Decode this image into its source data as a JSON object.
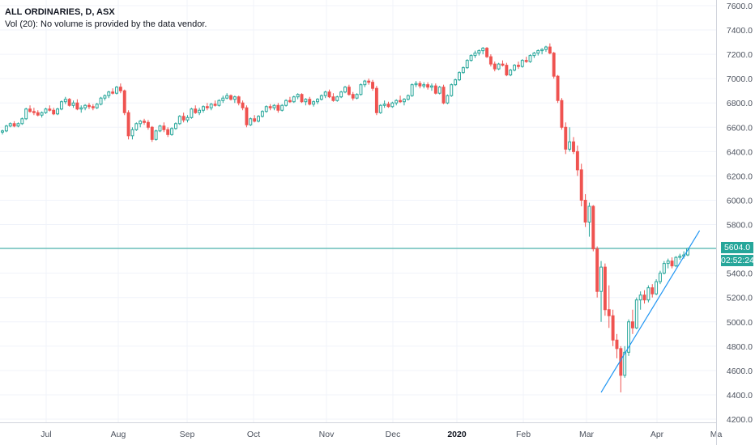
{
  "header": {
    "title": "ALL ORDINARIES, D, ASX",
    "volume_note": "Vol (20): No volume is provided by the data vendor."
  },
  "colors": {
    "up": "#26a69a",
    "down": "#ef5350",
    "price_line": "#26a69a",
    "trendline": "#2196f3",
    "grid": "#f0f3fa",
    "axis_text": "#4c525e"
  },
  "price_badge": {
    "value": "5604.0",
    "countdown": "02:52:24"
  },
  "chart_data": {
    "type": "candlestick",
    "title": "ALL ORDINARIES, D, ASX",
    "y_ticks": [
      "7600.0",
      "7400.0",
      "7200.0",
      "7000.0",
      "6800.0",
      "6600.0",
      "6400.0",
      "6200.0",
      "6000.0",
      "5800.0",
      "5600.0",
      "5400.0",
      "5200.0",
      "5000.0",
      "4800.0",
      "4600.0",
      "4400.0",
      "4200.0"
    ],
    "ylim": [
      4150,
      7650
    ],
    "x_ticks": [
      {
        "label": "Jul",
        "bold": false
      },
      {
        "label": "Aug",
        "bold": false
      },
      {
        "label": "Sep",
        "bold": false
      },
      {
        "label": "Oct",
        "bold": false
      },
      {
        "label": "Nov",
        "bold": false
      },
      {
        "label": "Dec",
        "bold": false
      },
      {
        "label": "2020",
        "bold": true
      },
      {
        "label": "Feb",
        "bold": false
      },
      {
        "label": "Mar",
        "bold": false
      },
      {
        "label": "Apr",
        "bold": false
      },
      {
        "label": "Ma",
        "bold": false
      }
    ],
    "last_price": 5604.0,
    "trendline": {
      "start": {
        "bar": "2020-03-23",
        "value": 4420
      },
      "end": {
        "bar": "2020-04-14",
        "value": 5750
      }
    },
    "ohlc": [
      [
        6560,
        6580,
        6540,
        6570
      ],
      [
        6570,
        6620,
        6560,
        6610
      ],
      [
        6610,
        6640,
        6600,
        6630
      ],
      [
        6630,
        6650,
        6600,
        6610
      ],
      [
        6610,
        6640,
        6600,
        6630
      ],
      [
        6630,
        6680,
        6620,
        6670
      ],
      [
        6670,
        6760,
        6660,
        6750
      ],
      [
        6750,
        6780,
        6720,
        6730
      ],
      [
        6730,
        6760,
        6700,
        6720
      ],
      [
        6720,
        6740,
        6690,
        6700
      ],
      [
        6700,
        6730,
        6680,
        6720
      ],
      [
        6720,
        6760,
        6710,
        6750
      ],
      [
        6750,
        6780,
        6730,
        6740
      ],
      [
        6740,
        6760,
        6700,
        6710
      ],
      [
        6710,
        6760,
        6700,
        6750
      ],
      [
        6750,
        6820,
        6740,
        6810
      ],
      [
        6810,
        6850,
        6790,
        6830
      ],
      [
        6830,
        6840,
        6770,
        6780
      ],
      [
        6780,
        6820,
        6760,
        6800
      ],
      [
        6800,
        6830,
        6740,
        6750
      ],
      [
        6750,
        6780,
        6720,
        6760
      ],
      [
        6760,
        6790,
        6740,
        6780
      ],
      [
        6780,
        6800,
        6750,
        6770
      ],
      [
        6770,
        6790,
        6740,
        6760
      ],
      [
        6760,
        6800,
        6750,
        6790
      ],
      [
        6790,
        6850,
        6780,
        6840
      ],
      [
        6840,
        6870,
        6820,
        6860
      ],
      [
        6860,
        6900,
        6840,
        6890
      ],
      [
        6890,
        6920,
        6870,
        6880
      ],
      [
        6880,
        6940,
        6870,
        6930
      ],
      [
        6930,
        6960,
        6880,
        6900
      ],
      [
        6900,
        6910,
        6700,
        6720
      ],
      [
        6720,
        6740,
        6500,
        6530
      ],
      [
        6530,
        6600,
        6500,
        6580
      ],
      [
        6580,
        6640,
        6570,
        6630
      ],
      [
        6630,
        6660,
        6600,
        6650
      ],
      [
        6650,
        6670,
        6620,
        6640
      ],
      [
        6640,
        6660,
        6580,
        6600
      ],
      [
        6600,
        6610,
        6480,
        6500
      ],
      [
        6500,
        6580,
        6490,
        6570
      ],
      [
        6570,
        6620,
        6560,
        6610
      ],
      [
        6610,
        6640,
        6560,
        6580
      ],
      [
        6580,
        6600,
        6520,
        6540
      ],
      [
        6540,
        6600,
        6530,
        6590
      ],
      [
        6590,
        6640,
        6580,
        6630
      ],
      [
        6630,
        6700,
        6620,
        6690
      ],
      [
        6690,
        6720,
        6640,
        6660
      ],
      [
        6660,
        6700,
        6640,
        6680
      ],
      [
        6680,
        6760,
        6670,
        6750
      ],
      [
        6750,
        6780,
        6710,
        6720
      ],
      [
        6720,
        6760,
        6700,
        6740
      ],
      [
        6740,
        6780,
        6720,
        6770
      ],
      [
        6770,
        6800,
        6740,
        6760
      ],
      [
        6760,
        6800,
        6740,
        6790
      ],
      [
        6790,
        6820,
        6770,
        6780
      ],
      [
        6780,
        6830,
        6770,
        6820
      ],
      [
        6820,
        6860,
        6800,
        6840
      ],
      [
        6840,
        6880,
        6830,
        6860
      ],
      [
        6860,
        6870,
        6820,
        6830
      ],
      [
        6830,
        6860,
        6800,
        6850
      ],
      [
        6850,
        6860,
        6780,
        6800
      ],
      [
        6800,
        6820,
        6740,
        6760
      ],
      [
        6760,
        6780,
        6600,
        6620
      ],
      [
        6620,
        6680,
        6610,
        6670
      ],
      [
        6670,
        6700,
        6640,
        6650
      ],
      [
        6650,
        6700,
        6640,
        6690
      ],
      [
        6690,
        6740,
        6680,
        6730
      ],
      [
        6730,
        6780,
        6720,
        6770
      ],
      [
        6770,
        6790,
        6740,
        6760
      ],
      [
        6760,
        6790,
        6740,
        6780
      ],
      [
        6780,
        6800,
        6720,
        6740
      ],
      [
        6740,
        6790,
        6730,
        6780
      ],
      [
        6780,
        6830,
        6770,
        6820
      ],
      [
        6820,
        6850,
        6800,
        6810
      ],
      [
        6810,
        6860,
        6800,
        6850
      ],
      [
        6850,
        6880,
        6830,
        6870
      ],
      [
        6870,
        6880,
        6800,
        6810
      ],
      [
        6810,
        6840,
        6780,
        6830
      ],
      [
        6830,
        6850,
        6780,
        6790
      ],
      [
        6790,
        6820,
        6770,
        6810
      ],
      [
        6810,
        6840,
        6790,
        6830
      ],
      [
        6830,
        6870,
        6820,
        6860
      ],
      [
        6860,
        6900,
        6840,
        6890
      ],
      [
        6890,
        6910,
        6840,
        6850
      ],
      [
        6850,
        6880,
        6810,
        6820
      ],
      [
        6820,
        6860,
        6810,
        6850
      ],
      [
        6850,
        6900,
        6840,
        6890
      ],
      [
        6890,
        6940,
        6880,
        6930
      ],
      [
        6930,
        6950,
        6860,
        6870
      ],
      [
        6870,
        6890,
        6820,
        6840
      ],
      [
        6840,
        6880,
        6830,
        6870
      ],
      [
        6870,
        6960,
        6860,
        6950
      ],
      [
        6950,
        6990,
        6930,
        6980
      ],
      [
        6980,
        7000,
        6950,
        6970
      ],
      [
        6970,
        6990,
        6900,
        6920
      ],
      [
        6920,
        6940,
        6700,
        6720
      ],
      [
        6720,
        6790,
        6710,
        6780
      ],
      [
        6780,
        6820,
        6760,
        6790
      ],
      [
        6790,
        6810,
        6760,
        6770
      ],
      [
        6770,
        6810,
        6760,
        6800
      ],
      [
        6800,
        6830,
        6780,
        6820
      ],
      [
        6820,
        6860,
        6800,
        6810
      ],
      [
        6810,
        6840,
        6780,
        6830
      ],
      [
        6830,
        6870,
        6820,
        6860
      ],
      [
        6860,
        6960,
        6850,
        6950
      ],
      [
        6950,
        6980,
        6930,
        6960
      ],
      [
        6960,
        6980,
        6920,
        6940
      ],
      [
        6940,
        6970,
        6920,
        6950
      ],
      [
        6950,
        6970,
        6910,
        6930
      ],
      [
        6930,
        6960,
        6900,
        6940
      ],
      [
        6940,
        6960,
        6870,
        6880
      ],
      [
        6880,
        6940,
        6870,
        6930
      ],
      [
        6930,
        6950,
        6790,
        6800
      ],
      [
        6800,
        6870,
        6790,
        6860
      ],
      [
        6860,
        6960,
        6850,
        6950
      ],
      [
        6950,
        7000,
        6940,
        6990
      ],
      [
        6990,
        7060,
        6980,
        7050
      ],
      [
        7050,
        7100,
        7040,
        7090
      ],
      [
        7090,
        7160,
        7080,
        7150
      ],
      [
        7150,
        7200,
        7140,
        7190
      ],
      [
        7190,
        7230,
        7170,
        7210
      ],
      [
        7210,
        7240,
        7190,
        7230
      ],
      [
        7230,
        7260,
        7200,
        7250
      ],
      [
        7250,
        7260,
        7170,
        7180
      ],
      [
        7180,
        7200,
        7100,
        7120
      ],
      [
        7120,
        7140,
        7060,
        7080
      ],
      [
        7080,
        7130,
        7070,
        7120
      ],
      [
        7120,
        7150,
        7100,
        7110
      ],
      [
        7110,
        7130,
        7020,
        7030
      ],
      [
        7030,
        7080,
        7020,
        7070
      ],
      [
        7070,
        7120,
        7060,
        7110
      ],
      [
        7110,
        7140,
        7080,
        7100
      ],
      [
        7100,
        7160,
        7090,
        7150
      ],
      [
        7150,
        7180,
        7130,
        7140
      ],
      [
        7140,
        7200,
        7130,
        7190
      ],
      [
        7190,
        7220,
        7170,
        7210
      ],
      [
        7210,
        7240,
        7190,
        7230
      ],
      [
        7230,
        7250,
        7200,
        7240
      ],
      [
        7240,
        7270,
        7220,
        7260
      ],
      [
        7260,
        7290,
        7200,
        7210
      ],
      [
        7210,
        7220,
        7000,
        7020
      ],
      [
        7020,
        7030,
        6800,
        6820
      ],
      [
        6820,
        6840,
        6580,
        6600
      ],
      [
        6600,
        6640,
        6380,
        6420
      ],
      [
        6420,
        6600,
        6400,
        6480
      ],
      [
        6480,
        6520,
        6380,
        6400
      ],
      [
        6400,
        6450,
        6200,
        6250
      ],
      [
        6250,
        6300,
        5950,
        6000
      ],
      [
        6000,
        6050,
        5780,
        5820
      ],
      [
        5820,
        5980,
        5700,
        5950
      ],
      [
        5950,
        5960,
        5580,
        5600
      ],
      [
        5600,
        5620,
        5200,
        5250
      ],
      [
        5250,
        5500,
        5000,
        5450
      ],
      [
        5450,
        5480,
        5050,
        5100
      ],
      [
        5100,
        5300,
        4950,
        5050
      ],
      [
        5050,
        5100,
        4800,
        4850
      ],
      [
        4850,
        4900,
        4700,
        4780
      ],
      [
        4780,
        4800,
        4420,
        4560
      ],
      [
        4560,
        4800,
        4540,
        4750
      ],
      [
        4750,
        5020,
        4720,
        5000
      ],
      [
        5000,
        5100,
        4900,
        4950
      ],
      [
        4950,
        5200,
        4940,
        5180
      ],
      [
        5180,
        5250,
        5100,
        5220
      ],
      [
        5220,
        5260,
        5150,
        5180
      ],
      [
        5180,
        5300,
        5160,
        5280
      ],
      [
        5280,
        5310,
        5200,
        5230
      ],
      [
        5230,
        5350,
        5220,
        5330
      ],
      [
        5330,
        5420,
        5310,
        5400
      ],
      [
        5400,
        5500,
        5390,
        5480
      ],
      [
        5480,
        5520,
        5440,
        5500
      ],
      [
        5500,
        5530,
        5440,
        5460
      ],
      [
        5460,
        5540,
        5450,
        5530
      ],
      [
        5530,
        5560,
        5510,
        5540
      ],
      [
        5540,
        5580,
        5520,
        5550
      ],
      [
        5550,
        5610,
        5540,
        5604
      ]
    ]
  }
}
